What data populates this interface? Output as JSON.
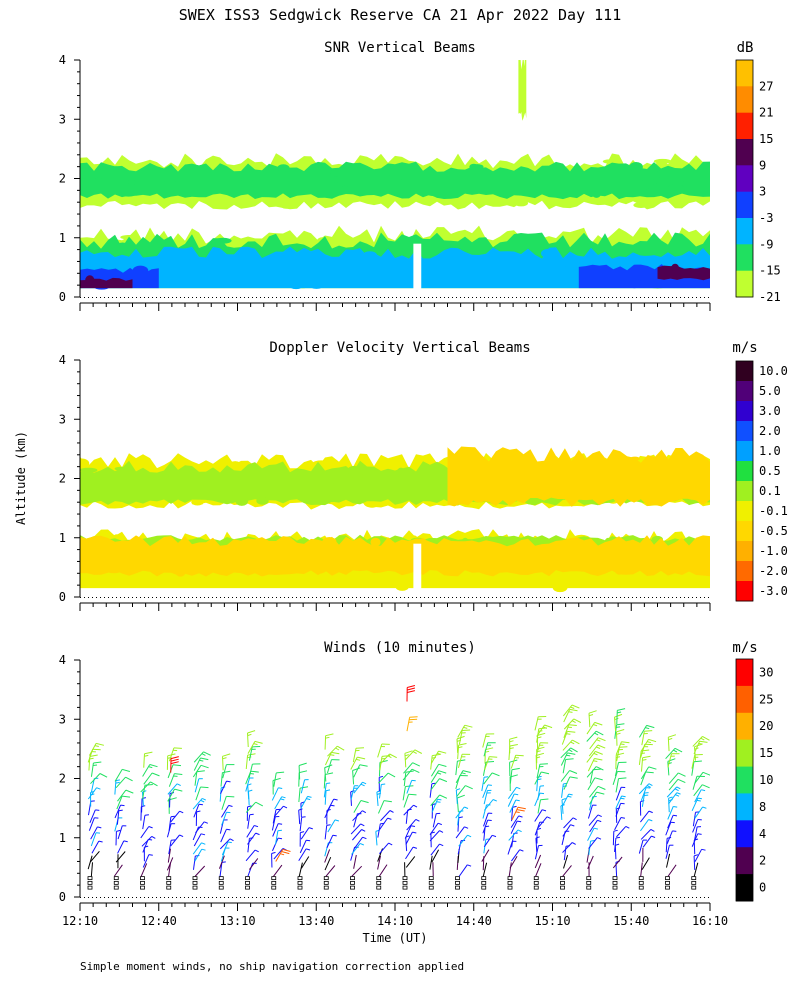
{
  "page": {
    "title": "SWEX ISS3 Sedgwick Reserve CA  21 Apr 2022 Day 111",
    "shared_ylabel": "Altitude (km)",
    "shared_xlabel": "Time (UT)",
    "footnote": "Simple moment winds, no ship navigation correction applied"
  },
  "chart_data": [
    {
      "type": "heatmap",
      "title": "SNR Vertical Beams",
      "xlabel": "Time (UT)",
      "ylabel": "Altitude (km)",
      "xlim": [
        "12:10",
        "16:10"
      ],
      "ylim": [
        0,
        4
      ],
      "y_ticks": [
        "0",
        "1",
        "2",
        "3",
        "4"
      ],
      "x_ticks": [
        "12:10",
        "12:40",
        "13:10",
        "13:40",
        "14:10",
        "14:40",
        "15:10",
        "15:40",
        "16:10"
      ],
      "colorbar": {
        "units": "dB",
        "labels": [
          "27",
          "21",
          "15",
          "9",
          "3",
          "-3",
          "-9",
          "-15",
          "-21"
        ],
        "colors": [
          "#ffc000",
          "#ff8c00",
          "#ff2000",
          "#500050",
          "#6000c0",
          "#1040ff",
          "#00b4ff",
          "#20e060",
          "#c0ff30"
        ]
      },
      "layers": [
        {
          "label": "-21",
          "color": "#c0ff30",
          "bands": [
            {
              "x0": "12:10",
              "x1": "16:10",
              "y0": 0.15,
              "y1": 1.05
            },
            {
              "x0": "12:10",
              "x1": "16:10",
              "y0": 1.55,
              "y1": 2.3
            },
            {
              "x0": "14:57",
              "x1": "15:00",
              "y0": 3.05,
              "y1": 3.95
            }
          ]
        },
        {
          "label": "-15",
          "color": "#20e060",
          "bands": [
            {
              "x0": "12:10",
              "x1": "16:10",
              "y0": 0.15,
              "y1": 0.95
            },
            {
              "x0": "12:10",
              "x1": "16:10",
              "y0": 1.7,
              "y1": 2.2
            }
          ]
        },
        {
          "label": "-9",
          "color": "#00b4ff",
          "bands": [
            {
              "x0": "12:10",
              "x1": "16:10",
              "y0": 0.15,
              "y1": 0.75
            }
          ]
        },
        {
          "label": "-3",
          "color": "#1040ff",
          "bands": [
            {
              "x0": "12:10",
              "x1": "12:40",
              "y0": 0.15,
              "y1": 0.45
            },
            {
              "x0": "15:20",
              "x1": "16:10",
              "y0": 0.15,
              "y1": 0.5
            }
          ]
        },
        {
          "label": "9",
          "color": "#500050",
          "bands": [
            {
              "x0": "12:10",
              "x1": "12:30",
              "y0": 0.15,
              "y1": 0.3
            },
            {
              "x0": "15:50",
              "x1": "16:10",
              "y0": 0.3,
              "y1": 0.5
            }
          ]
        }
      ],
      "no_data": [
        {
          "x0": "14:17",
          "x1": "14:20",
          "y0": 0.1,
          "y1": 0.9
        }
      ]
    },
    {
      "type": "heatmap",
      "title": "Doppler Velocity Vertical Beams",
      "xlabel": "Time (UT)",
      "ylabel": "Altitude (km)",
      "xlim": [
        "12:10",
        "16:10"
      ],
      "ylim": [
        0,
        4
      ],
      "y_ticks": [
        "0",
        "1",
        "2",
        "3",
        "4"
      ],
      "x_ticks": [
        "12:10",
        "12:40",
        "13:10",
        "13:40",
        "14:10",
        "14:40",
        "15:10",
        "15:40",
        "16:10"
      ],
      "colorbar": {
        "units": "m/s",
        "labels": [
          "10.0",
          "5.0",
          "3.0",
          "2.0",
          "1.0",
          "0.5",
          "0.1",
          "-0.1",
          "-0.5",
          "-1.0",
          "-2.0",
          "-3.0"
        ],
        "colors": [
          "#300020",
          "#500078",
          "#3000d0",
          "#1050ff",
          "#00a0ff",
          "#20e040",
          "#a0f020",
          "#f0f000",
          "#ffd800",
          "#ffb000",
          "#ff6a00",
          "#ff0000"
        ]
      },
      "layers": [
        {
          "label": "-0.1",
          "color": "#f0f000",
          "bands": [
            {
              "x0": "12:10",
              "x1": "16:10",
              "y0": 0.15,
              "y1": 1.0
            },
            {
              "x0": "12:10",
              "x1": "16:10",
              "y0": 1.55,
              "y1": 2.3
            }
          ]
        },
        {
          "label": "0.1",
          "color": "#a0f020",
          "bands": [
            {
              "x0": "12:10",
              "x1": "16:10",
              "y0": 0.7,
              "y1": 1.0
            },
            {
              "x0": "12:10",
              "x1": "16:10",
              "y0": 1.6,
              "y1": 2.2
            }
          ]
        },
        {
          "label": "-0.5",
          "color": "#ffd800",
          "bands": [
            {
              "x0": "12:10",
              "x1": "16:10",
              "y0": 0.4,
              "y1": 0.95
            },
            {
              "x0": "14:30",
              "x1": "16:10",
              "y0": 1.6,
              "y1": 2.4
            }
          ]
        }
      ],
      "no_data": [
        {
          "x0": "14:17",
          "x1": "14:20",
          "y0": 0.1,
          "y1": 0.9
        }
      ]
    },
    {
      "type": "scatter",
      "title": "Winds (10 minutes)",
      "xlabel": "Time (UT)",
      "ylabel": "Altitude (km)",
      "xlim": [
        "12:10",
        "16:10"
      ],
      "ylim": [
        0,
        4
      ],
      "y_ticks": [
        "0",
        "1",
        "2",
        "3",
        "4"
      ],
      "x_ticks": [
        "12:10",
        "12:40",
        "13:10",
        "13:40",
        "14:10",
        "14:40",
        "15:10",
        "15:40",
        "16:10"
      ],
      "colorbar": {
        "units": "m/s",
        "labels": [
          "30",
          "25",
          "20",
          "15",
          "10",
          "8",
          "4",
          "2",
          "0"
        ],
        "colors": [
          "#ff0000",
          "#ff6000",
          "#ffb000",
          "#a0f020",
          "#20e060",
          "#00b4ff",
          "#1010ff",
          "#500050",
          "#000000"
        ]
      },
      "barb_times": [
        "12:10",
        "12:20",
        "12:30",
        "12:40",
        "12:50",
        "13:00",
        "13:10",
        "13:20",
        "13:30",
        "13:40",
        "13:50",
        "14:00",
        "14:10",
        "14:20",
        "14:30",
        "14:40",
        "14:50",
        "15:00",
        "15:10",
        "15:20",
        "15:30",
        "15:40",
        "15:50",
        "16:00"
      ],
      "barb_heights_km": [
        0.2,
        0.4,
        0.6,
        0.8,
        1.0,
        1.2,
        1.4,
        1.6,
        1.8,
        2.0,
        2.2,
        2.4
      ],
      "speed_profile": [
        {
          "top_km": 0.6,
          "speed": 2
        },
        {
          "top_km": 1.4,
          "speed": 6
        },
        {
          "top_km": 1.8,
          "speed": 9
        },
        {
          "top_km": 2.1,
          "speed": 12
        },
        {
          "top_km": 4.0,
          "speed": 16
        }
      ],
      "top_km": [
        2.4,
        2.0,
        2.2,
        2.3,
        2.3,
        2.2,
        2.6,
        1.9,
        2.1,
        2.6,
        2.3,
        2.4,
        2.4,
        2.3,
        2.7,
        2.6,
        2.5,
        2.9,
        3.2,
        2.9,
        3.0,
        2.8,
        2.6,
        2.6
      ],
      "strong_barbs": [
        {
          "time": "12:40",
          "alt_km": 2.1,
          "speed": 30
        },
        {
          "time": "13:20",
          "alt_km": 0.6,
          "speed": 28
        },
        {
          "time": "14:10",
          "alt_km": 3.3,
          "speed": 32
        },
        {
          "time": "14:10",
          "alt_km": 2.8,
          "speed": 24
        },
        {
          "time": "14:50",
          "alt_km": 1.3,
          "speed": 27
        }
      ]
    }
  ]
}
